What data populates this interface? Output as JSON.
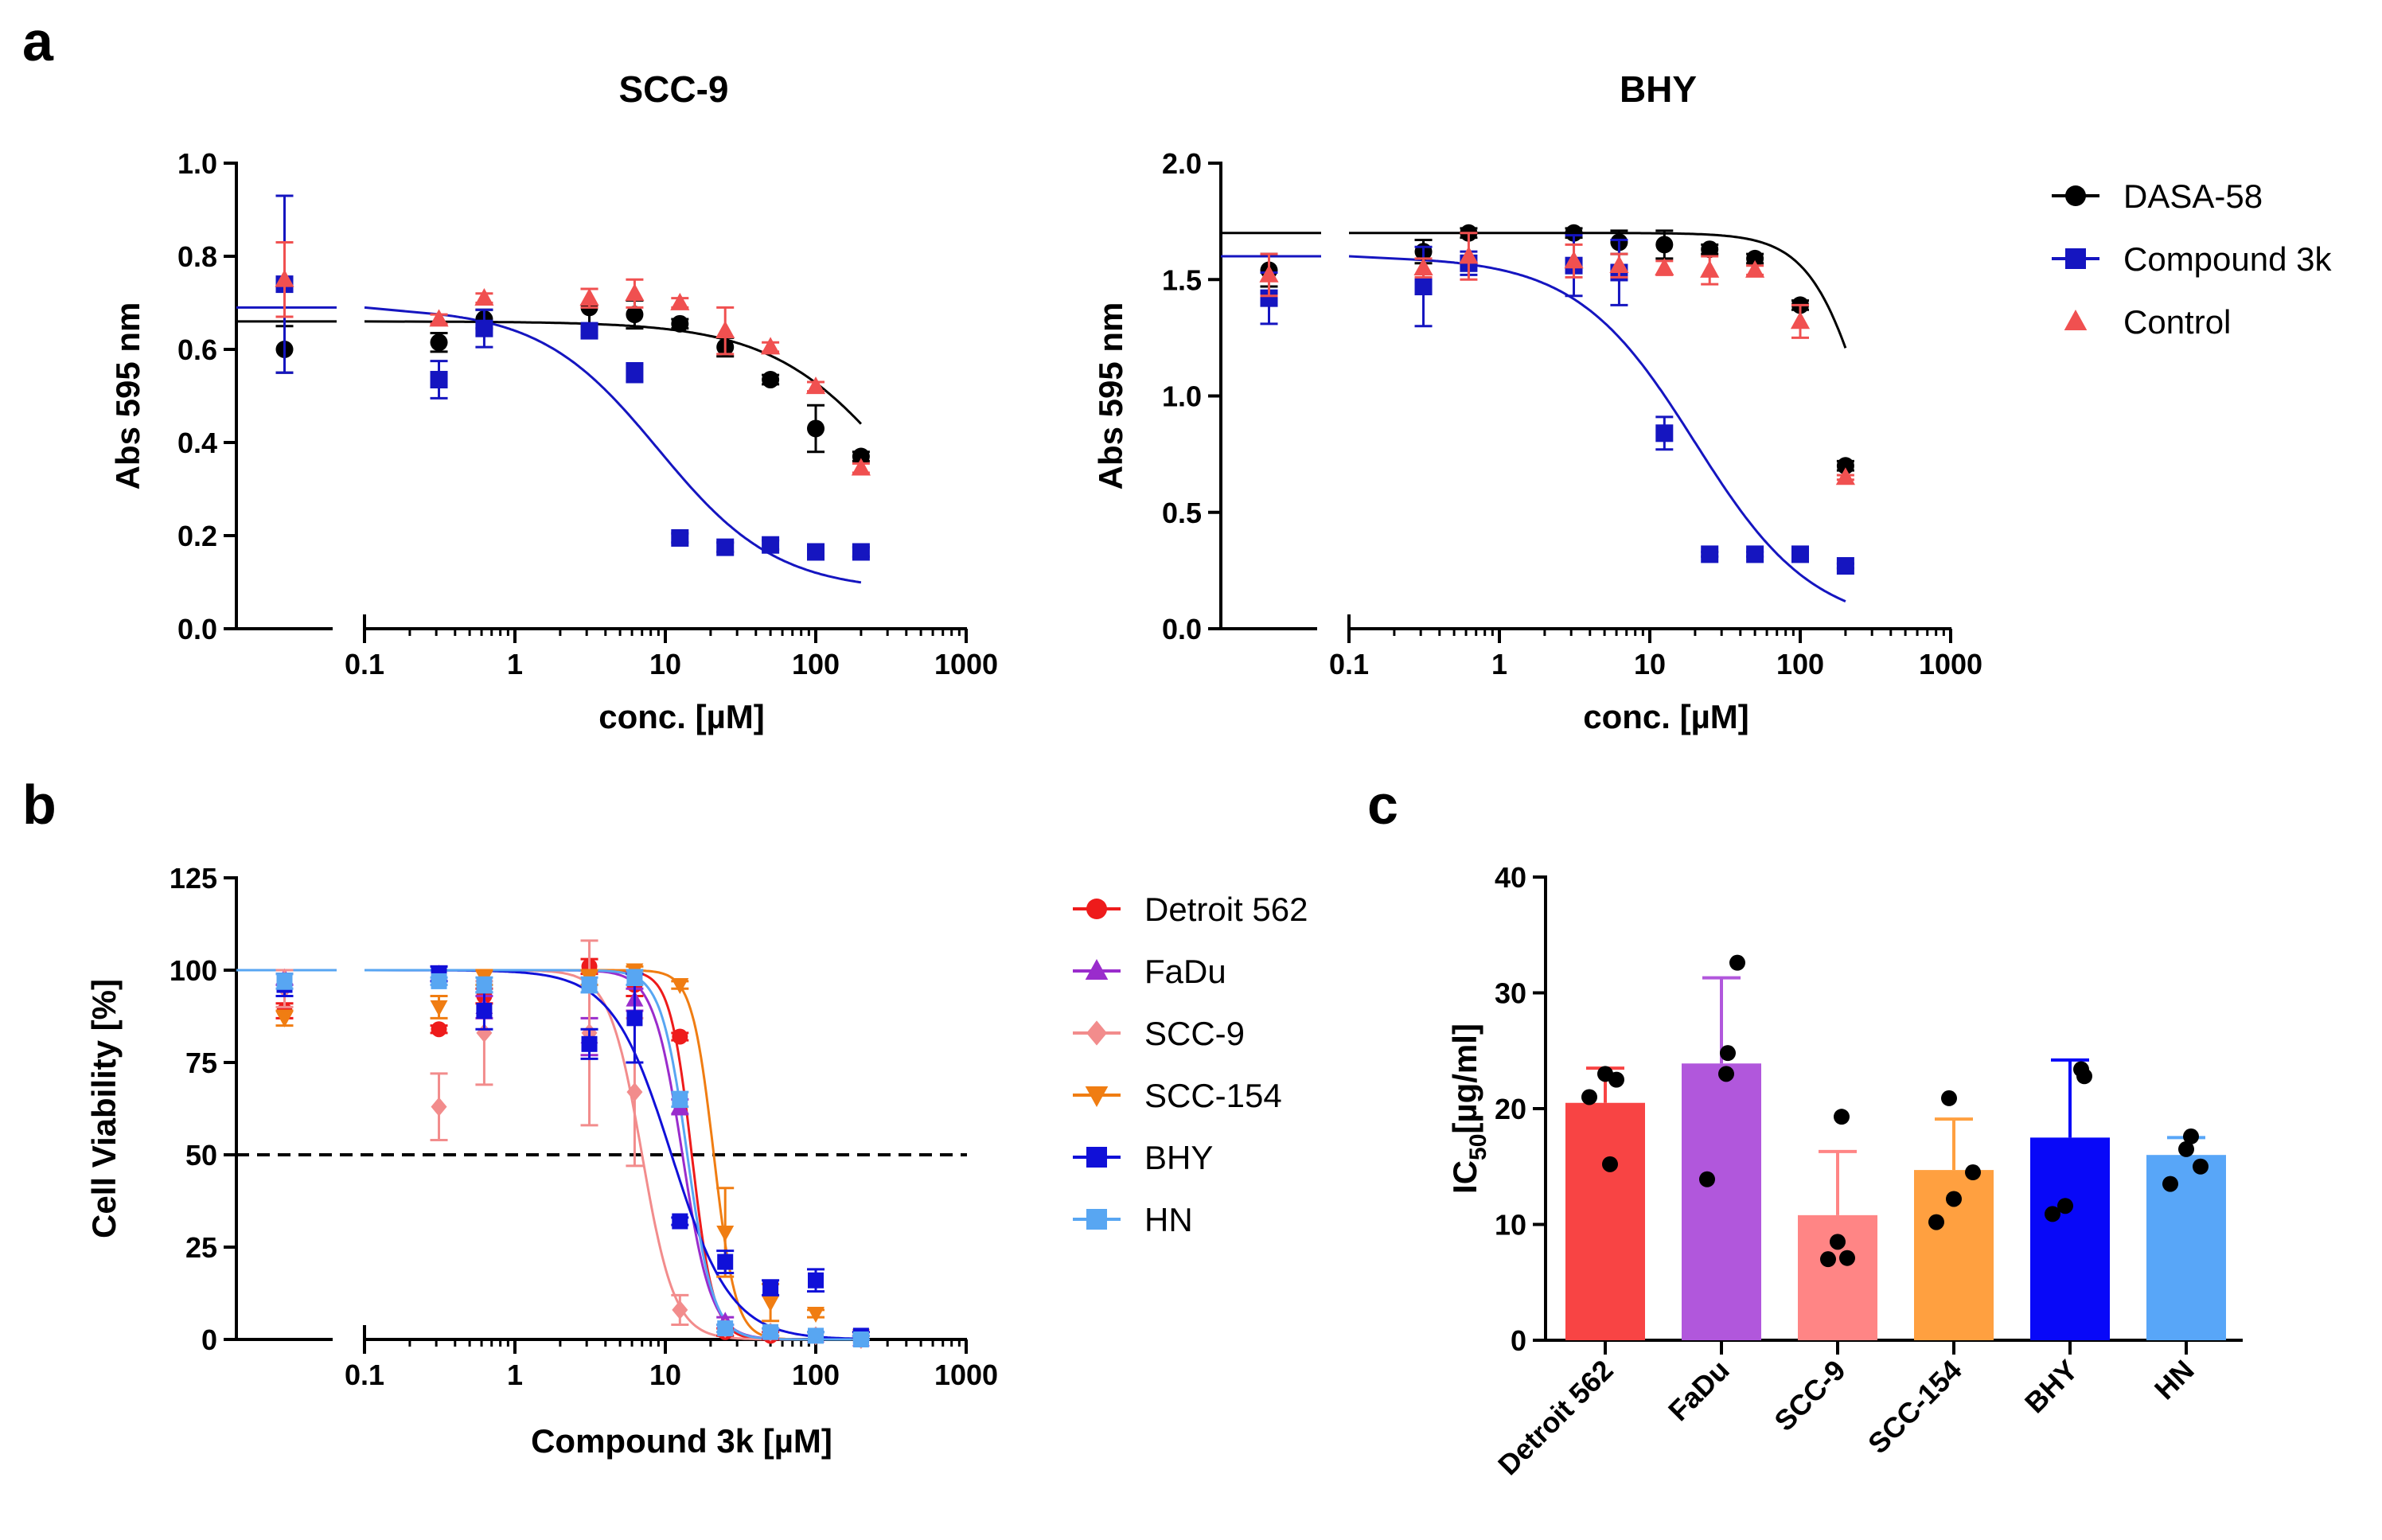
{
  "panel_labels": {
    "a": "a",
    "b": "b",
    "c": "c"
  },
  "chart_data": [
    {
      "id": "a-scc9",
      "type": "scatter",
      "title": "SCC-9",
      "xlabel": "conc. [µM]",
      "ylabel": "Abs 595 nm",
      "xscale": "log",
      "xticks": [
        "0.1",
        "1",
        "10",
        "100",
        "1000"
      ],
      "yticks": [
        "0.0",
        "0.2",
        "0.4",
        "0.6",
        "0.8",
        "1.0"
      ],
      "ylim": [
        0,
        1.0
      ],
      "control_point_x": "zero concentration (left broken axis segment)",
      "series": [
        {
          "name": "DASA-58",
          "color": "#000000",
          "marker": "circle",
          "x": [
            0.3125,
            0.625,
            3.125,
            6.25,
            12.5,
            25,
            50,
            100,
            200
          ],
          "y": [
            0.615,
            0.665,
            0.69,
            0.675,
            0.655,
            0.605,
            0.535,
            0.43,
            0.37
          ],
          "err": [
            0.02,
            0.02,
            0.04,
            0.03,
            0.01,
            0.02,
            0.01,
            0.05,
            0.01
          ],
          "control": {
            "y": 0.6,
            "err": 0.05
          },
          "fit": {
            "top": 0.66,
            "bottom": 0.0,
            "ic50": 400,
            "hill": 1.0
          }
        },
        {
          "name": "Compound 3k",
          "color": "#1515c0",
          "marker": "square",
          "x": [
            0.3125,
            0.625,
            3.125,
            6.25,
            12.5,
            25,
            50,
            100,
            200
          ],
          "y": [
            0.535,
            0.645,
            0.64,
            0.55,
            0.195,
            0.175,
            0.18,
            0.165,
            0.165
          ],
          "err": [
            0.04,
            0.04,
            0.01,
            0.02,
            0.01,
            0.01,
            0.01,
            0.01,
            0.01
          ],
          "control": {
            "y": 0.74,
            "err": 0.19
          },
          "fit": {
            "top": 0.69,
            "bottom": 0.08,
            "ic50": 9,
            "hill": 1.1
          }
        },
        {
          "name": "Control",
          "color": "#f05050",
          "marker": "triangle",
          "x": [
            0.3125,
            0.625,
            3.125,
            6.25,
            12.5,
            25,
            50,
            100,
            200
          ],
          "y": [
            0.665,
            0.71,
            0.71,
            0.72,
            0.7,
            0.64,
            0.605,
            0.52,
            0.345
          ],
          "err": [
            0.01,
            0.01,
            0.02,
            0.03,
            0.01,
            0.05,
            0.01,
            0.01,
            0.01
          ],
          "control": {
            "y": 0.75,
            "err": 0.08
          }
        }
      ]
    },
    {
      "id": "a-bhy",
      "type": "scatter",
      "title": "BHY",
      "xlabel": "conc. [µM]",
      "ylabel": "Abs 595 nm",
      "xscale": "log",
      "xticks": [
        "0.1",
        "1",
        "10",
        "100",
        "1000"
      ],
      "yticks": [
        "0.0",
        "0.5",
        "1.0",
        "1.5",
        "2.0"
      ],
      "ylim": [
        0,
        2.0
      ],
      "legend": [
        "DASA-58",
        "Compound 3k",
        "Control"
      ],
      "series": [
        {
          "name": "DASA-58",
          "color": "#000000",
          "marker": "circle",
          "x": [
            0.3125,
            0.625,
            3.125,
            6.25,
            12.5,
            25,
            50,
            100,
            200
          ],
          "y": [
            1.62,
            1.7,
            1.7,
            1.66,
            1.65,
            1.63,
            1.59,
            1.39,
            0.7
          ],
          "err": [
            0.05,
            0.02,
            0.02,
            0.05,
            0.06,
            0.02,
            0.02,
            0.02,
            0.02
          ],
          "control": {
            "y": 1.54,
            "err": 0.07
          },
          "fit": {
            "top": 1.7,
            "bottom": 0.0,
            "ic50": 300,
            "hill": 2.2
          }
        },
        {
          "name": "Compound 3k",
          "color": "#1515c0",
          "marker": "square",
          "x": [
            0.3125,
            0.625,
            3.125,
            6.25,
            12.5,
            25,
            50,
            100,
            200
          ],
          "y": [
            1.47,
            1.57,
            1.56,
            1.53,
            0.84,
            0.32,
            0.32,
            0.32,
            0.27
          ],
          "err": [
            0.17,
            0.05,
            0.13,
            0.14,
            0.07,
            0.01,
            0.01,
            0.01,
            0.01
          ],
          "control": {
            "y": 1.42,
            "err": 0.11
          },
          "fit": {
            "top": 1.6,
            "bottom": 0.0,
            "ic50": 20,
            "hill": 1.1
          }
        },
        {
          "name": "Control",
          "color": "#f05050",
          "marker": "triangle",
          "x": [
            0.3125,
            0.625,
            3.125,
            6.25,
            12.5,
            25,
            50,
            100,
            200
          ],
          "y": [
            1.55,
            1.6,
            1.58,
            1.56,
            1.55,
            1.54,
            1.54,
            1.32,
            0.65
          ],
          "err": [
            0.04,
            0.1,
            0.07,
            0.05,
            0.03,
            0.06,
            0.02,
            0.07,
            0.01
          ],
          "control": {
            "y": 1.52,
            "err": 0.09
          }
        }
      ]
    },
    {
      "id": "b",
      "type": "scatter",
      "title": "",
      "xlabel": "Compound 3k [µM]",
      "ylabel": "Cell Viability [%]",
      "xscale": "log",
      "xticks": [
        "0.1",
        "1",
        "10",
        "100",
        "1000"
      ],
      "yticks": [
        "0",
        "25",
        "50",
        "75",
        "100",
        "125"
      ],
      "ylim": [
        0,
        125
      ],
      "reference_line": 50,
      "series": [
        {
          "name": "Detroit 562",
          "color": "#ee1b1b",
          "marker": "circle",
          "x": [
            0.3125,
            0.625,
            3.125,
            6.25,
            12.5,
            25,
            50,
            100,
            200
          ],
          "y": [
            84,
            93,
            101,
            96,
            82,
            2,
            1,
            1,
            0
          ],
          "err": [
            1,
            2,
            2,
            3,
            1,
            1,
            1,
            1,
            1
          ],
          "control": {
            "y": 89,
            "err": 2
          },
          "fit": {
            "top": 100,
            "bottom": 0,
            "ic50": 15,
            "hill": 6
          }
        },
        {
          "name": "FaDu",
          "color": "#9a2ccc",
          "marker": "triangle",
          "x": [
            0.3125,
            0.625,
            3.125,
            6.25,
            12.5,
            25,
            50,
            100,
            200
          ],
          "y": [
            99,
            90,
            82,
            92,
            63,
            5,
            2,
            1,
            0
          ],
          "err": [
            2,
            3,
            5,
            3,
            2,
            1,
            1,
            1,
            1
          ],
          "control": {
            "y": 98,
            "err": 2
          },
          "fit": {
            "top": 100,
            "bottom": 0,
            "ic50": 13,
            "hill": 4.5
          }
        },
        {
          "name": "SCC-9",
          "color": "#f28c8c",
          "marker": "diamond",
          "x": [
            0.3125,
            0.625,
            3.125,
            6.25,
            12.5,
            25,
            50,
            100,
            200
          ],
          "y": [
            63,
            83,
            83,
            67,
            8,
            3,
            2,
            1,
            0
          ],
          "err": [
            9,
            14,
            25,
            20,
            4,
            1,
            1,
            1,
            1
          ],
          "control": {
            "y": 95,
            "err": 5
          },
          "fit": {
            "top": 100,
            "bottom": 0,
            "ic50": 7,
            "hill": 4
          }
        },
        {
          "name": "SCC-154",
          "color": "#f07d12",
          "marker": "triangle-down",
          "x": [
            0.3125,
            0.625,
            3.125,
            6.25,
            12.5,
            25,
            50,
            100,
            200
          ],
          "y": [
            90,
            98,
            98,
            100,
            96,
            29,
            10,
            7,
            1
          ],
          "err": [
            3,
            2,
            2,
            1,
            1,
            12,
            5,
            1,
            1
          ],
          "control": {
            "y": 87,
            "err": 2
          },
          "fit": {
            "top": 100,
            "bottom": 0,
            "ic50": 21,
            "hill": 6
          }
        },
        {
          "name": "BHY",
          "color": "#1010d8",
          "marker": "square",
          "x": [
            0.3125,
            0.625,
            3.125,
            6.25,
            12.5,
            25,
            50,
            100,
            200
          ],
          "y": [
            99,
            89,
            80,
            87,
            32,
            21,
            14,
            16,
            1
          ],
          "err": [
            2,
            5,
            4,
            12,
            1,
            3,
            2,
            3,
            1
          ],
          "control": {
            "y": 96,
            "err": 3
          },
          "fit": {
            "top": 100,
            "bottom": 0,
            "ic50": 11,
            "hill": 2.2
          }
        },
        {
          "name": "HN",
          "color": "#58a6f2",
          "marker": "square",
          "x": [
            0.3125,
            0.625,
            3.125,
            6.25,
            12.5,
            25,
            50,
            100,
            200
          ],
          "y": [
            97,
            96,
            96,
            98,
            65,
            3,
            2,
            1,
            0
          ],
          "err": [
            1,
            2,
            2,
            2,
            2,
            1,
            1,
            1,
            1
          ],
          "control": {
            "y": 97,
            "err": 2
          },
          "fit": {
            "top": 100,
            "bottom": 0,
            "ic50": 14,
            "hill": 5
          }
        }
      ]
    },
    {
      "id": "c",
      "type": "bar",
      "title": "",
      "ylabel_main": "IC",
      "ylabel_sub": "50",
      "ylabel_unit": "[µg/ml]",
      "yticks": [
        "0",
        "10",
        "20",
        "30",
        "40"
      ],
      "ylim": [
        0,
        40
      ],
      "categories": [
        "Detroit 562",
        "FaDu",
        "SCC-9",
        "SCC-154",
        "BHY",
        "HN"
      ],
      "colors": [
        "#f84444",
        "#b157dc",
        "#ff8585",
        "#ffa040",
        "#0808f8",
        "#58a6f8"
      ],
      "values": [
        20.5,
        23.9,
        10.8,
        14.7,
        17.5,
        16.0
      ],
      "errors": [
        3.0,
        7.4,
        5.5,
        4.4,
        6.7,
        1.5
      ],
      "points": [
        [
          15.2,
          21.0,
          22.5,
          23.0
        ],
        [
          13.9,
          23.0,
          24.8,
          32.6
        ],
        [
          7.0,
          7.1,
          8.5,
          19.3
        ],
        [
          10.2,
          12.2,
          14.5,
          20.9
        ],
        [
          10.9,
          11.6,
          22.8,
          23.4
        ],
        [
          13.5,
          15.0,
          16.5,
          17.6
        ]
      ]
    }
  ]
}
